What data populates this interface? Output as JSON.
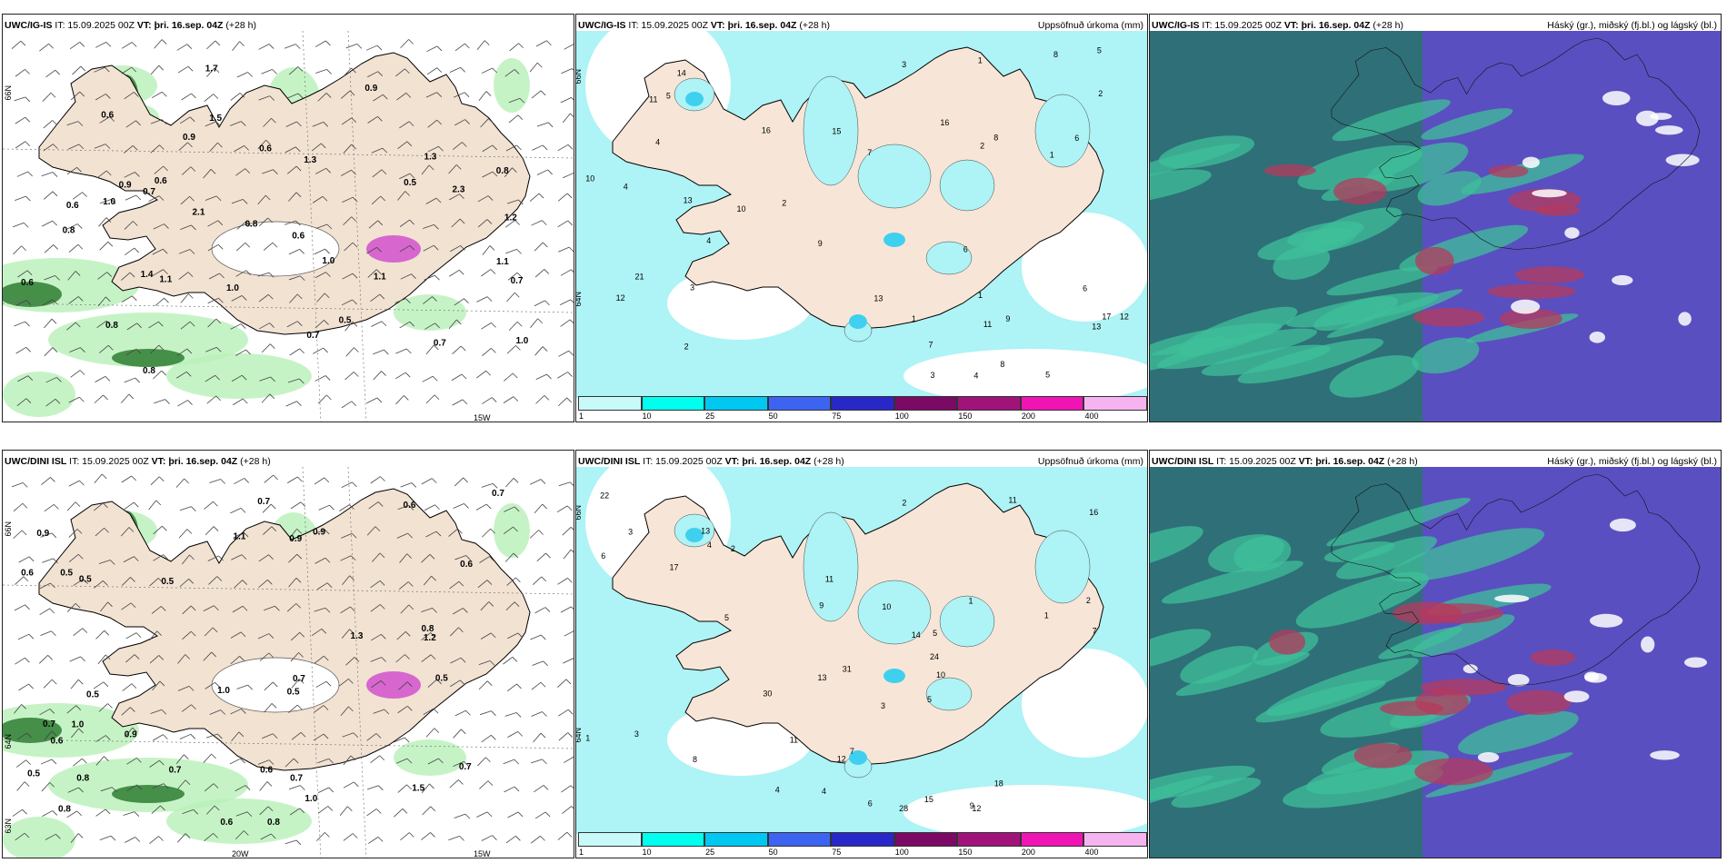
{
  "rows": [
    {
      "model": "UWC/IG-IS",
      "it": "IT: 15.09.2025 00Z",
      "vt_label": "VT:",
      "vt": "þri. 16.sep. 04Z",
      "lead": "(+28 h)"
    },
    {
      "model": "UWC/DINI ISL",
      "it": "IT: 15.09.2025 00Z",
      "vt_label": "VT:",
      "vt": "þri. 16.sep. 04Z",
      "lead": "(+28 h)"
    }
  ],
  "precip_title": "Uppsöfnuð úrkoma (mm)",
  "cloud_title": "Háský (gr.), miðský (fj.bl.) og lágský (bl.)",
  "colorbar": {
    "ticks": [
      "1",
      "10",
      "25",
      "50",
      "75",
      "100",
      "150",
      "200",
      "400"
    ],
    "colors": [
      "#c8fafa",
      "#00ffee",
      "#00c8f0",
      "#3c64f0",
      "#2828c8",
      "#7a0a64",
      "#a0147a",
      "#f014b4",
      "#f5b4f0"
    ]
  },
  "axis_labels": {
    "lat_66": "66N",
    "lat_64": "64N",
    "lon_15w": "15W",
    "lon_20w": "20W",
    "lat_63": "63N"
  },
  "wind_values_top": [
    "0.6",
    "1.3",
    "0.9",
    "0.7",
    "1.0",
    "1.1",
    "0.6",
    "1.1",
    "1.7",
    "0.8",
    "0.6",
    "0.7",
    "1.4",
    "0.6",
    "0.8",
    "0.7",
    "0.9",
    "1.1",
    "0.8",
    "1.0",
    "0.8",
    "0.5",
    "0.6",
    "1.0",
    "1.5",
    "2.3",
    "0.9",
    "0.7",
    "0.8",
    "1.3",
    "0.6",
    "1.0",
    "1.2",
    "2.1",
    "0.5"
  ],
  "wind_values_bottom": [
    "0.6",
    "0.7",
    "0.6",
    "0.5",
    "1.0",
    "0.7",
    "0.5",
    "0.7",
    "1.1",
    "0.9",
    "1.0",
    "0.5",
    "0.6",
    "0.9",
    "0.8",
    "0.8",
    "0.6",
    "0.5",
    "1.5",
    "0.6",
    "0.9",
    "0.7",
    "0.5",
    "0.6",
    "1.3",
    "0.9",
    "0.7",
    "0.8",
    "0.5",
    "0.7",
    "1.0",
    "1.2",
    "0.8",
    "0.7",
    "0.5"
  ],
  "precip_values_top": [
    "10",
    "12",
    "5",
    "13",
    "1",
    "2",
    "4",
    "3",
    "7",
    "1",
    "11",
    "5",
    "6",
    "9",
    "12",
    "16",
    "8",
    "13",
    "5",
    "3",
    "4",
    "7",
    "4",
    "6",
    "2",
    "9",
    "8",
    "11",
    "17",
    "10",
    "21",
    "14",
    "15",
    "6",
    "8",
    "13",
    "2",
    "1",
    "3",
    "4",
    "2",
    "16",
    "1"
  ],
  "precip_values_bottom": [
    "1",
    "2",
    "4",
    "11",
    "3",
    "5",
    "22",
    "17",
    "14",
    "15",
    "24",
    "18",
    "16",
    "13",
    "10",
    "12",
    "7",
    "9",
    "30",
    "31",
    "28",
    "5",
    "11",
    "2",
    "3",
    "4",
    "6",
    "8",
    "9",
    "10",
    "11",
    "12",
    "13",
    "1",
    "2",
    "3",
    "4",
    "5",
    "6",
    "7",
    "1"
  ]
}
